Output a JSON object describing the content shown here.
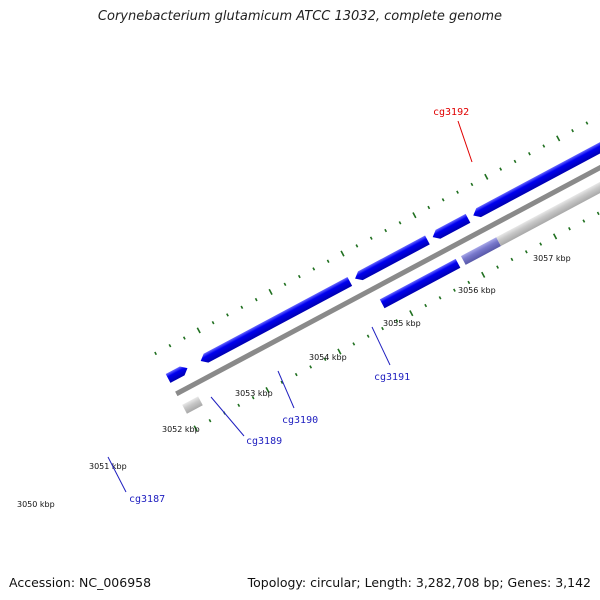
{
  "title": "Corynebacterium glutamicum ATCC 13032, complete genome",
  "footer": {
    "accession": "Accession: NC_006958",
    "summary": "Topology: circular; Length: 3,282,708 bp; Genes: 3,142"
  },
  "colors": {
    "backbone": "#808080",
    "cds_forward": "#0000f0",
    "cds_reverse": "#0000f0",
    "highlight": "#f00000",
    "pseudo": "#8080d0",
    "rna": "#c8c8c8",
    "tick": "#207020",
    "label_blue": "#2020c0",
    "label_red": "#e00000"
  },
  "scale": {
    "tick_labels": [
      "3050 kbp",
      "3051 kbp",
      "3052 kbp",
      "3053 kbp",
      "3054 kbp",
      "3055 kbp",
      "3056 kbp",
      "3057 kbp"
    ]
  },
  "genes": [
    {
      "label": "cg3187"
    },
    {
      "label": "cg3189"
    },
    {
      "label": "cg3190"
    },
    {
      "label": "cg3191"
    },
    {
      "label": "cg3192"
    }
  ]
}
